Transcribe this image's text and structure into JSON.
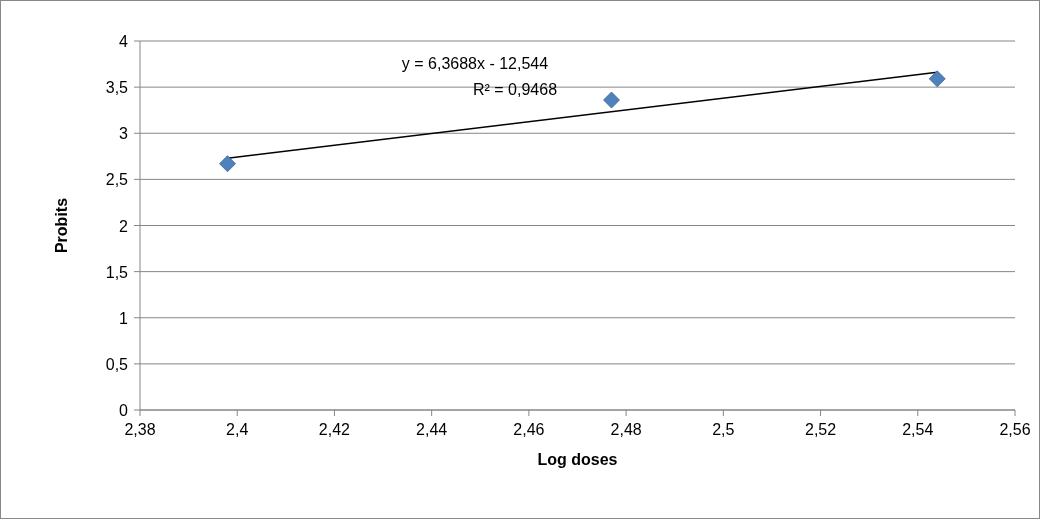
{
  "chart_data": {
    "type": "scatter",
    "xlabel": "Log doses",
    "ylabel": "Probits",
    "x": [
      2.398,
      2.477,
      2.544
    ],
    "series": [
      {
        "type": "scatter",
        "color": "#4f81bd",
        "values": [
          2.67,
          3.36,
          3.59
        ],
        "marker": "diamond"
      },
      {
        "type": "line",
        "color": "#000000",
        "x": [
          2.398,
          2.544
        ],
        "values": [
          2.73,
          3.66
        ],
        "marker": "none",
        "line_style": "solid"
      }
    ],
    "annotations": [
      "y = 6,3688x - 12,544",
      "R² = 0,9468"
    ],
    "xlim": [
      2.38,
      2.56
    ],
    "xticks": [
      {
        "value": 2.38,
        "label": "2,38"
      },
      {
        "value": 2.4,
        "label": "2,4"
      },
      {
        "value": 2.42,
        "label": "2,42"
      },
      {
        "value": 2.44,
        "label": "2,44"
      },
      {
        "value": 2.46,
        "label": "2,46"
      },
      {
        "value": 2.48,
        "label": "2,48"
      },
      {
        "value": 2.5,
        "label": "2,5"
      },
      {
        "value": 2.52,
        "label": "2,52"
      },
      {
        "value": 2.54,
        "label": "2,54"
      },
      {
        "value": 2.56,
        "label": "2,56"
      }
    ],
    "ylim": [
      0,
      4
    ],
    "yticks": [
      0,
      {
        "value": 0.5,
        "label": "0,5"
      },
      1,
      {
        "value": 1.5,
        "label": "1,5"
      },
      2,
      {
        "value": 2.5,
        "label": "2,5"
      },
      3,
      {
        "value": 3.5,
        "label": "3,5"
      },
      4
    ],
    "grid": "y"
  }
}
